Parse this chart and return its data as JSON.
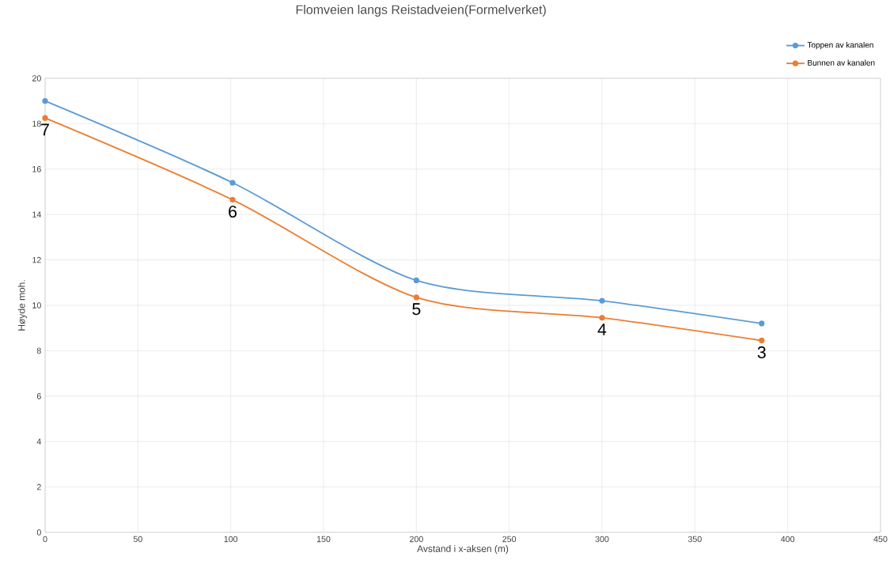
{
  "chart_data": {
    "type": "line",
    "title": "Flomveien langs Reistadveien(Formelverket)",
    "xlabel": "Avstand i x-aksen (m)",
    "ylabel": "Høyde moh.",
    "series": [
      {
        "name": "Toppen av kanalen",
        "color": "#5b9bd5",
        "x": [
          0,
          101,
          200,
          300,
          386
        ],
        "values": [
          19.0,
          15.4,
          11.1,
          10.2,
          9.2
        ]
      },
      {
        "name": "Bunnen av kanalen",
        "color": "#ed7d31",
        "x": [
          0,
          101,
          200,
          300,
          386
        ],
        "values": [
          18.25,
          14.65,
          10.35,
          9.45,
          8.45
        ]
      }
    ],
    "annotations": [
      {
        "text": "7",
        "x": 0,
        "y": 18.25
      },
      {
        "text": "6",
        "x": 101,
        "y": 14.65
      },
      {
        "text": "5",
        "x": 200,
        "y": 10.35
      },
      {
        "text": "4",
        "x": 300,
        "y": 9.45
      },
      {
        "text": "3",
        "x": 386,
        "y": 8.45
      }
    ],
    "xlim": [
      0,
      450
    ],
    "xticks": [
      0,
      50,
      100,
      150,
      200,
      250,
      300,
      350,
      400,
      450
    ],
    "ylim": [
      0,
      20
    ],
    "yticks": [
      0,
      2,
      4,
      6,
      8,
      10,
      12,
      14,
      16,
      18,
      20
    ],
    "grid": true,
    "legend": "top right",
    "marker": "circle",
    "line_style": "solid"
  }
}
